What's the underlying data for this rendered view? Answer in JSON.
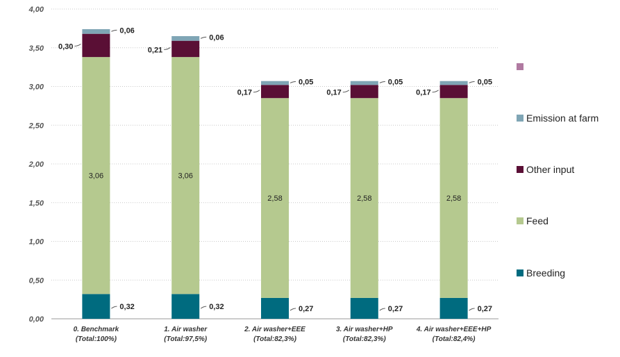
{
  "chart_data": {
    "type": "bar",
    "stacked": true,
    "categories": [
      [
        "0. Benchmark",
        "(Total:100%)"
      ],
      [
        "1. Air washer",
        "(Total:97,5%)"
      ],
      [
        "2. Air washer+EEE",
        "(Total:82,3%)"
      ],
      [
        "3. Air washer+HP",
        "(Total:82,3%)"
      ],
      [
        "4. Air washer+EEE+HP",
        "(Total:82,4%)"
      ]
    ],
    "series": [
      {
        "name": "Breeding",
        "color": "#006b7f",
        "values": [
          0.32,
          0.32,
          0.27,
          0.27,
          0.27
        ],
        "labels": [
          "0,32",
          "0,32",
          "0,27",
          "0,27",
          "0,27"
        ]
      },
      {
        "name": "Feed",
        "color": "#b5c98f",
        "values": [
          3.06,
          3.06,
          2.58,
          2.58,
          2.58
        ],
        "labels": [
          "3,06",
          "3,06",
          "2,58",
          "2,58",
          "2,58"
        ]
      },
      {
        "name": "Other input",
        "color": "#5a0f35",
        "values": [
          0.3,
          0.21,
          0.17,
          0.17,
          0.17
        ],
        "labels": [
          "0,30",
          "0,21",
          "0,17",
          "0,17",
          "0,17"
        ]
      },
      {
        "name": "Emission at farm",
        "color": "#7fa5b5",
        "values": [
          0.06,
          0.06,
          0.05,
          0.05,
          0.05
        ],
        "labels": [
          "0,06",
          "0,06",
          "0,05",
          "0,05",
          "0,05"
        ]
      }
    ],
    "ylim": [
      0,
      4
    ],
    "yticks": [
      "0,00",
      "0,50",
      "1,00",
      "1,50",
      "2,00",
      "2,50",
      "3,00",
      "3,50",
      "4,00"
    ],
    "grid": true,
    "legend_position": "right",
    "extra_legend_swatch_color": "#b07aa1"
  },
  "legend": {
    "items": [
      {
        "label": "",
        "color": "#b07aa1"
      },
      {
        "label": "Emission at farm",
        "color": "#7fa5b5"
      },
      {
        "label": "Other input",
        "color": "#5a0f35"
      },
      {
        "label": "Feed",
        "color": "#b5c98f"
      },
      {
        "label": "Breeding",
        "color": "#006b7f"
      }
    ]
  }
}
